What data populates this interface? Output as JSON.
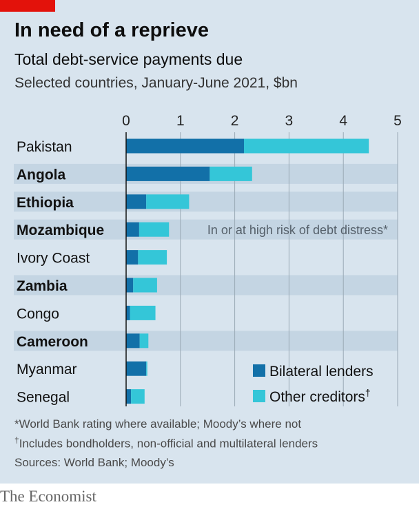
{
  "header": {
    "title": "In need of a reprieve",
    "subtitle": "Total debt-service payments due",
    "subtitle2": "Selected countries, January-June 2021, $bn"
  },
  "footnotes": {
    "note1": "*World Bank rating where available; Moody’s where not",
    "note2_mark": "†",
    "note2": "Includes bondholders, non-official and multilateral lenders",
    "sources": "Sources: World Bank; Moody’s"
  },
  "brand": "The Economist",
  "colors": {
    "background": "#d8e4ee",
    "highlight_band": "#c4d5e3",
    "bilateral": "#1270a8",
    "other": "#34c6d8",
    "accent_red": "#e3120b"
  },
  "chart_data": {
    "type": "bar",
    "orientation": "horizontal",
    "stacked": true,
    "title": "In need of a reprieve",
    "subtitle": "Total debt-service payments due",
    "unit": "$bn",
    "xlim": [
      0,
      5
    ],
    "xticks": [
      "0",
      "1",
      "2",
      "3",
      "4",
      "5"
    ],
    "grid": true,
    "categories": [
      "Pakistan",
      "Angola",
      "Ethiopia",
      "Mozambique",
      "Ivory Coast",
      "Zambia",
      "Congo",
      "Cameroon",
      "Myanmar",
      "Senegal"
    ],
    "highlighted": [
      false,
      true,
      true,
      true,
      false,
      true,
      false,
      true,
      false,
      false
    ],
    "series": [
      {
        "name": "Bilateral lenders",
        "values": [
          2.17,
          1.54,
          0.37,
          0.24,
          0.22,
          0.13,
          0.07,
          0.25,
          0.37,
          0.09
        ]
      },
      {
        "name": "Other creditors",
        "values": [
          2.3,
          0.78,
          0.79,
          0.55,
          0.53,
          0.44,
          0.47,
          0.16,
          0.02,
          0.25
        ]
      }
    ],
    "series_labels": [
      "Bilateral lenders",
      "Other creditors"
    ],
    "legend_marks": [
      "",
      "†"
    ],
    "legend_position": "bottom-right",
    "annotation": "In or at high risk of debt distress*"
  }
}
